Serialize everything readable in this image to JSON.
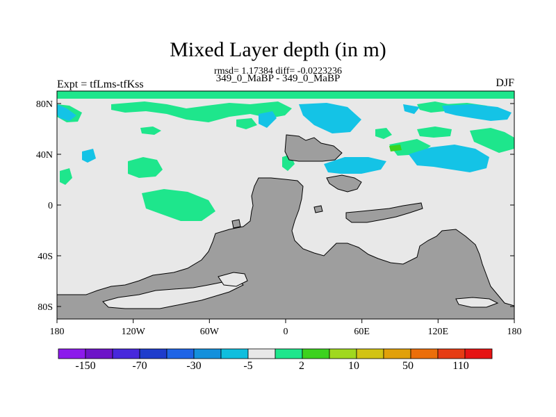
{
  "title": "Mixed Layer depth (in m)",
  "stats": "rmsd= 1.17384 diff= -0.0223236",
  "subtitle": "349_0_MaBP - 349_0_MaBP",
  "left_label": "Expt = tfLms-tfKss",
  "right_label": "DJF",
  "lat_labels": [
    "80N",
    "40N",
    "0",
    "40S",
    "80S"
  ],
  "lon_labels": [
    "180",
    "120W",
    "60W",
    "0",
    "60E",
    "120E",
    "180"
  ],
  "colorbar": {
    "colors": [
      "#8c1aeb",
      "#6d14c8",
      "#4828dc",
      "#1e3ccc",
      "#1e64e6",
      "#1490dc",
      "#0fbede",
      "#e8e8e8",
      "#1ee68c",
      "#3cd21e",
      "#a0d81e",
      "#d2c314",
      "#e1a00a",
      "#eb6e0a",
      "#e63c14",
      "#e61414"
    ],
    "labels": [
      "-150",
      "-70",
      "-30",
      "-5",
      "2",
      "10",
      "50",
      "110"
    ]
  },
  "colors": {
    "land": "#9e9e9e",
    "ocean": "#e8e8e8",
    "green": "#1ee68c",
    "cyan": "#14c3e6",
    "blue": "#1ea0e6",
    "lime": "#3cd21e"
  }
}
